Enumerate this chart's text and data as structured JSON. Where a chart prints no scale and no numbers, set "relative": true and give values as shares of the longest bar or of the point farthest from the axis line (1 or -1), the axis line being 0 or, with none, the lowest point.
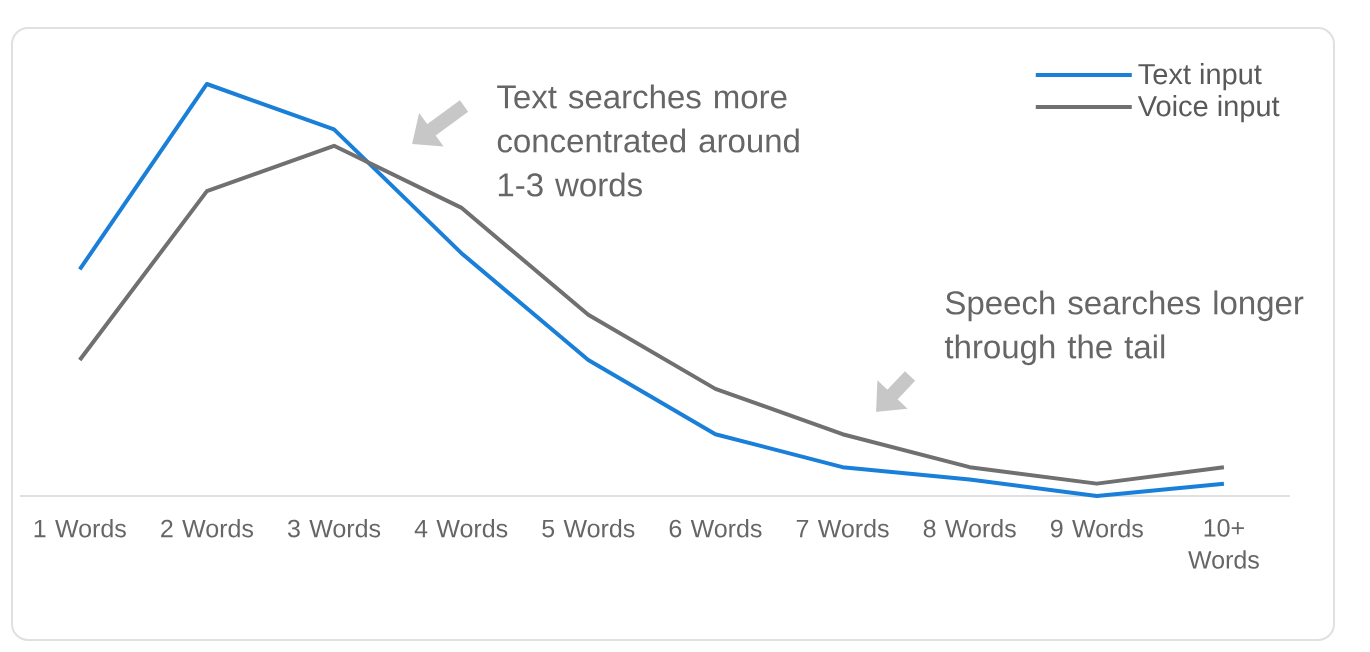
{
  "chart_data": {
    "type": "line",
    "relative": true,
    "categories": [
      "1 Words",
      "2 Words",
      "3 Words",
      "4 Words",
      "5 Words",
      "6 Words",
      "7 Words",
      "8 Words",
      "9 Words",
      "10+ Words"
    ],
    "series": [
      {
        "name": "Text input",
        "color": "#1a7fd8",
        "values": [
          0.55,
          1.0,
          0.89,
          0.59,
          0.33,
          0.15,
          0.07,
          0.04,
          0,
          0.03
        ]
      },
      {
        "name": "Voice input",
        "color": "#707070",
        "values": [
          0.33,
          0.74,
          0.85,
          0.7,
          0.44,
          0.26,
          0.15,
          0.07,
          0.03,
          0.07
        ]
      }
    ],
    "annotations": [
      "Text searches more concentrated around 1-3 words",
      "Speech searches longer through the tail"
    ],
    "legend": "top right",
    "grid": false,
    "marker": "none",
    "line_style": "solid"
  }
}
